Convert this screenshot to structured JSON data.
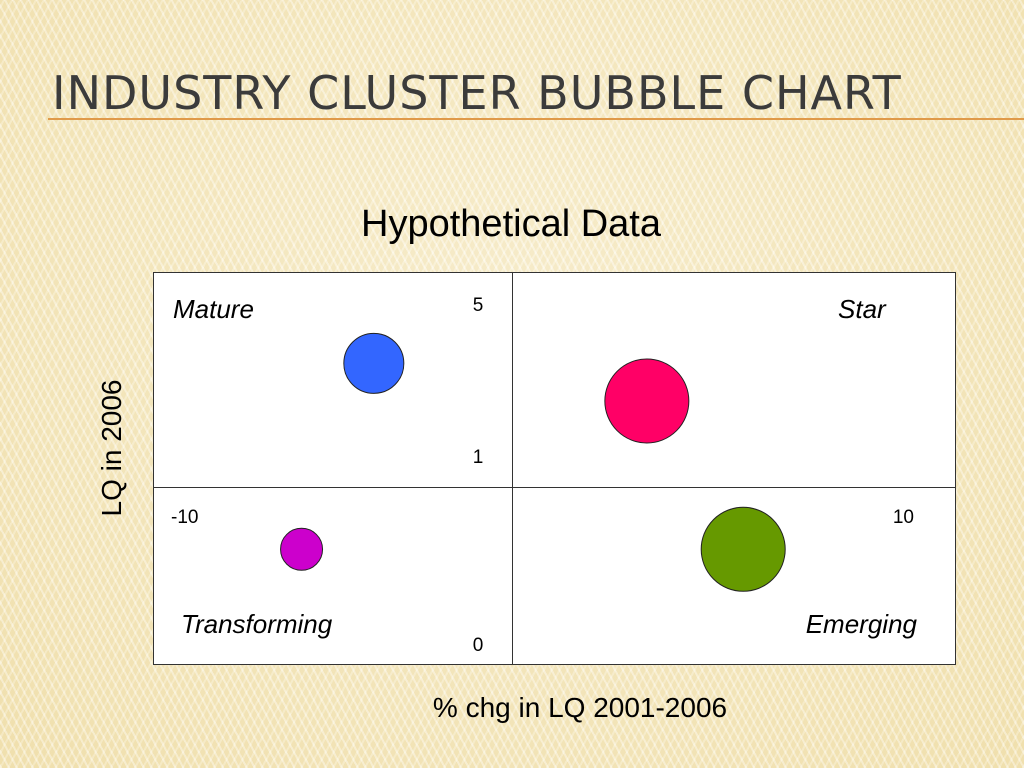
{
  "slide": {
    "title": "Industry Cluster Bubble Chart",
    "accent_color": "#e09a4a"
  },
  "chart_data": {
    "type": "scatter",
    "title": "Hypothetical Data",
    "xlabel": "% chg in LQ 2001-2006",
    "ylabel": "LQ in 2006",
    "grid": false,
    "quadrant_labels": {
      "top_left": "Mature",
      "top_right": "Star",
      "bottom_left": "Transforming",
      "bottom_right": "Emerging"
    },
    "axis_marks": {
      "y_top": "5",
      "y_middle": "1",
      "y_bottom": "0",
      "x_left": "-10",
      "x_right": "10"
    },
    "points": [
      {
        "quadrant": "Mature",
        "x": -4.5,
        "y": 3.3,
        "size": 30,
        "color": "#3366ff"
      },
      {
        "quadrant": "Star",
        "x": 2.3,
        "y": 2.6,
        "size": 42,
        "color": "#ff0066"
      },
      {
        "quadrant": "Transforming",
        "x": -6.3,
        "y": 0.65,
        "size": 21,
        "color": "#cc00cc"
      },
      {
        "quadrant": "Emerging",
        "x": 4.7,
        "y": 0.65,
        "size": 42,
        "color": "#669900"
      }
    ]
  }
}
